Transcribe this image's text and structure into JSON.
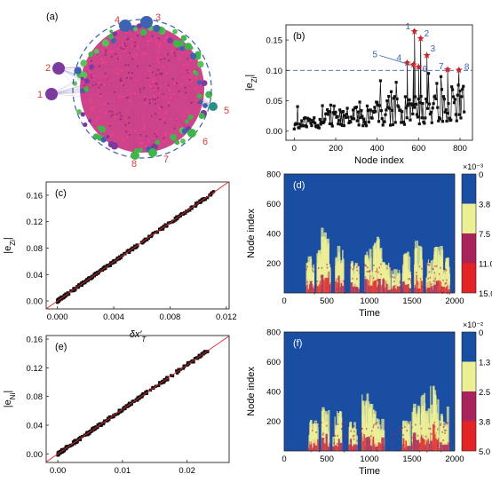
{
  "panel_labels": {
    "a": "(a)",
    "b": "(b)",
    "c": "(c)",
    "d": "(d)",
    "e": "(e)",
    "f": "(f)"
  },
  "network": {
    "hub_labels": [
      "1",
      "2",
      "3",
      "4",
      "5",
      "6",
      "7",
      "8"
    ],
    "colors": {
      "core": "#e0337a",
      "ring": "#3a5fa8",
      "label": "#d93a3a",
      "green": "#3fb54a",
      "blue": "#3c62b0",
      "purple": "#7d3a9e"
    }
  },
  "chart_data": [
    {
      "id": "b",
      "type": "line",
      "title": "",
      "xlabel": "Node index",
      "ylabel": "|e_Zi|",
      "xlim": [
        -40,
        860
      ],
      "ylim": [
        -0.015,
        0.175
      ],
      "xticks": [
        0,
        200,
        400,
        600,
        800
      ],
      "yticks": [
        0.0,
        0.05,
        0.1,
        0.15
      ],
      "ytick_labels": [
        "0.00",
        "0.05",
        "0.10",
        "0.15"
      ],
      "threshold": 0.1,
      "series_color": "#111111",
      "highlight_color": "#d8232a",
      "label_color": "#3c62b0",
      "highlights": [
        {
          "label": "1",
          "x": 580,
          "y": 0.165
        },
        {
          "label": "2",
          "x": 610,
          "y": 0.153
        },
        {
          "label": "3",
          "x": 640,
          "y": 0.125
        },
        {
          "label": "4",
          "x": 545,
          "y": 0.113
        },
        {
          "label": "5",
          "x": 575,
          "y": 0.11
        },
        {
          "label": "6",
          "x": 600,
          "y": 0.106
        },
        {
          "label": "7",
          "x": 740,
          "y": 0.102
        },
        {
          "label": "8",
          "x": 795,
          "y": 0.101
        }
      ]
    },
    {
      "id": "c",
      "type": "scatter",
      "title": "",
      "xlabel": "δx′_T",
      "ylabel": "|e_Zi|",
      "xlim": [
        -0.0008,
        0.0122
      ],
      "ylim": [
        -0.012,
        0.18
      ],
      "xticks": [
        0.0,
        0.004,
        0.008,
        0.012
      ],
      "xtick_labels": [
        "0.000",
        "0.004",
        "0.008",
        "0.012"
      ],
      "yticks": [
        0.0,
        0.04,
        0.08,
        0.12,
        0.16
      ],
      "ytick_labels": [
        "0.00",
        "0.04",
        "0.08",
        "0.12",
        "0.16"
      ],
      "fit": {
        "slope": 14.8,
        "intercept": 0.0,
        "color": "#d8232a"
      },
      "x_max": 0.0111,
      "marker_color": "#111111"
    },
    {
      "id": "e",
      "type": "scatter",
      "title": "",
      "xlabel": "δx′_T",
      "ylabel": "|e_Ni|",
      "xlim": [
        -0.0018,
        0.0265
      ],
      "ylim": [
        -0.012,
        0.165
      ],
      "xticks": [
        0.0,
        0.01,
        0.02
      ],
      "xtick_labels": [
        "0.00",
        "0.01",
        "0.02"
      ],
      "yticks": [
        0.0,
        0.04,
        0.08,
        0.12,
        0.16
      ],
      "ytick_labels": [
        "0.00",
        "0.04",
        "0.08",
        "0.12",
        "0.16"
      ],
      "fit": {
        "slope": 6.2,
        "intercept": 0.0,
        "color": "#d8232a"
      },
      "x_max": 0.0232,
      "marker_color": "#111111"
    },
    {
      "id": "d",
      "type": "heatmap",
      "title": "",
      "xlabel": "Time",
      "ylabel": "Node index",
      "xlim": [
        0,
        2000
      ],
      "ylim": [
        0,
        800
      ],
      "xticks": [
        0,
        500,
        1000,
        1500,
        2000
      ],
      "yticks": [
        200,
        400,
        600,
        800
      ],
      "bursts": [
        {
          "t": 300,
          "h": 260
        },
        {
          "t": 420,
          "h": 330
        },
        {
          "t": 470,
          "h": 440
        },
        {
          "t": 640,
          "h": 350
        },
        {
          "t": 820,
          "h": 220
        },
        {
          "t": 980,
          "h": 300
        },
        {
          "t": 1080,
          "h": 400
        },
        {
          "t": 1180,
          "h": 210
        },
        {
          "t": 1300,
          "h": 170
        },
        {
          "t": 1420,
          "h": 280
        },
        {
          "t": 1560,
          "h": 360
        },
        {
          "t": 1700,
          "h": 230
        },
        {
          "t": 1790,
          "h": 340
        },
        {
          "t": 1880,
          "h": 250
        }
      ],
      "colorbar": {
        "multiplier": "×10⁻³",
        "labels": [
          "0",
          "3.8",
          "7.5",
          "11.0",
          "15.0"
        ],
        "colors": [
          "#1a4ea3",
          "#ecef96",
          "#a8245b",
          "#e42424"
        ]
      }
    },
    {
      "id": "f",
      "type": "heatmap",
      "title": "",
      "xlabel": "Time",
      "ylabel": "Node index",
      "xlim": [
        0,
        2000
      ],
      "ylim": [
        0,
        800
      ],
      "xticks": [
        0,
        500,
        1000,
        1500,
        2000
      ],
      "yticks": [
        200,
        400,
        600,
        800
      ],
      "bursts": [
        {
          "t": 330,
          "h": 230
        },
        {
          "t": 470,
          "h": 300
        },
        {
          "t": 610,
          "h": 270
        },
        {
          "t": 800,
          "h": 200
        },
        {
          "t": 950,
          "h": 400
        },
        {
          "t": 1020,
          "h": 320
        },
        {
          "t": 1100,
          "h": 220
        },
        {
          "t": 1420,
          "h": 210
        },
        {
          "t": 1540,
          "h": 330
        },
        {
          "t": 1640,
          "h": 390
        },
        {
          "t": 1750,
          "h": 470
        },
        {
          "t": 1860,
          "h": 300
        }
      ],
      "colorbar": {
        "multiplier": "×10⁻²",
        "labels": [
          "0",
          "1.3",
          "2.5",
          "3.8",
          "5.0"
        ],
        "colors": [
          "#1a4ea3",
          "#ecef96",
          "#a8245b",
          "#e42424"
        ]
      }
    }
  ]
}
